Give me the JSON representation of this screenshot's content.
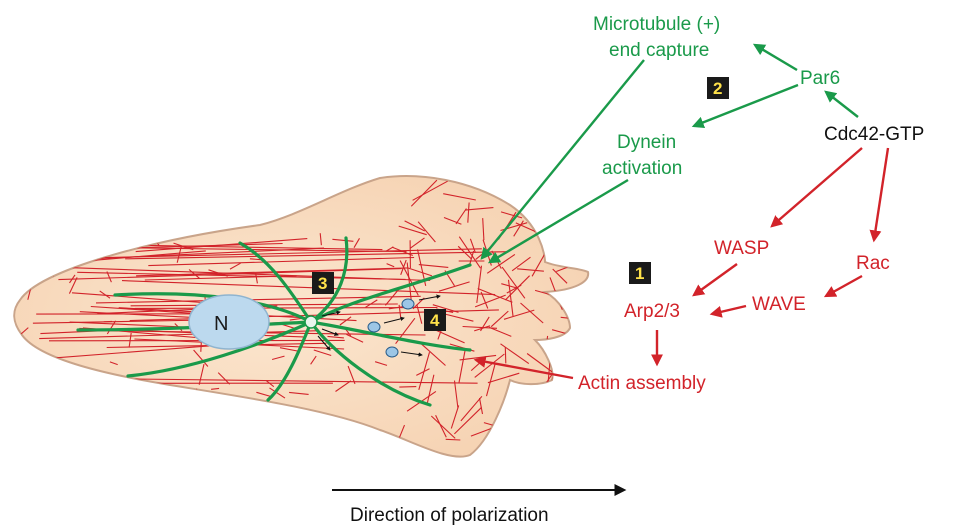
{
  "labels": {
    "microtubule_line1": "Microtubule (+)",
    "microtubule_line2": "end capture",
    "par6": "Par6",
    "cdc42": "Cdc42-GTP",
    "dynein_line1": "Dynein",
    "dynein_line2": "activation",
    "wasp": "WASP",
    "rac": "Rac",
    "wave": "WAVE",
    "arp23": "Arp2/3",
    "actin_assembly": "Actin assembly",
    "nucleus": "N",
    "direction": "Direction of polarization"
  },
  "badges": {
    "b1": "1",
    "b2": "2",
    "b3": "3",
    "b4": "4"
  },
  "colors": {
    "green": "#1a9a4a",
    "red": "#d2232a",
    "cell_fill": "#f9dcc0",
    "nucleus_fill": "#bcd9ee",
    "badge_bg": "#1a1a1a",
    "badge_text": "#ffe24a"
  }
}
